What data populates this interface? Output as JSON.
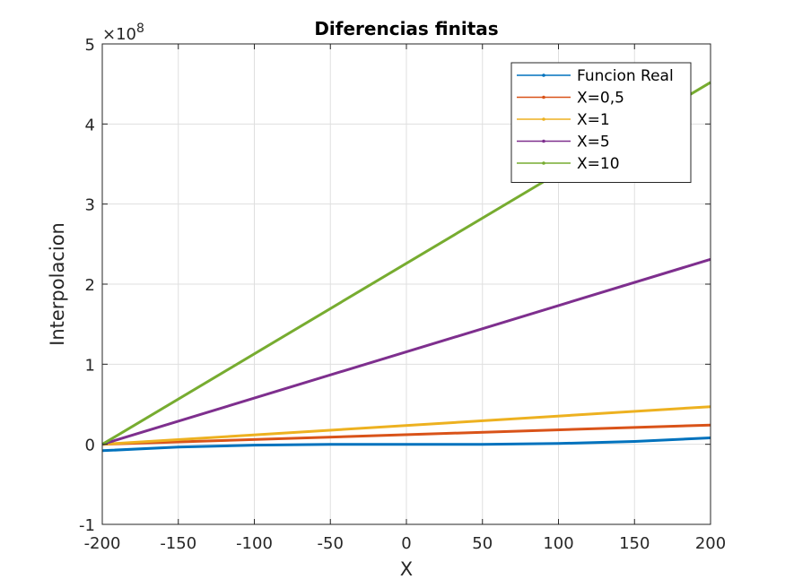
{
  "chart_data": {
    "type": "line",
    "title": "Diferencias finitas",
    "xlabel": "X",
    "ylabel": "Interpolacion",
    "y_exponent_label": "×10",
    "y_exponent": "8",
    "y_multiplier": 100000000,
    "xlim": [
      -200,
      200
    ],
    "ylim": [
      -1,
      5
    ],
    "x_ticks": [
      -200,
      -150,
      -100,
      -50,
      0,
      50,
      100,
      150,
      200
    ],
    "x_tick_labels": [
      "-200",
      "-150",
      "-100",
      "-50",
      "0",
      "50",
      "100",
      "150",
      "200"
    ],
    "y_ticks": [
      -1,
      0,
      1,
      2,
      3,
      4,
      5
    ],
    "y_tick_labels": [
      "-1",
      "0",
      "1",
      "2",
      "3",
      "4",
      "5"
    ],
    "grid": true,
    "legend_position": "top-right",
    "series": [
      {
        "name": "Funcion Real",
        "color": "#0072BD",
        "x": [
          -200,
          -150,
          -100,
          -50,
          0,
          50,
          100,
          150,
          200
        ],
        "y": [
          -0.08,
          -0.035,
          -0.01,
          0.0,
          0.0,
          0.0,
          0.01,
          0.035,
          0.08
        ]
      },
      {
        "name": "X=0,5",
        "color": "#D95319",
        "x": [
          -200,
          200
        ],
        "y": [
          0.0,
          0.24
        ]
      },
      {
        "name": "X=1",
        "color": "#EDB120",
        "x": [
          -200,
          200
        ],
        "y": [
          0.0,
          0.47
        ]
      },
      {
        "name": "X=5",
        "color": "#7E2F8E",
        "x": [
          -200,
          200
        ],
        "y": [
          0.0,
          2.31
        ]
      },
      {
        "name": "X=10",
        "color": "#77AC30",
        "x": [
          -200,
          200
        ],
        "y": [
          0.0,
          4.52
        ]
      }
    ]
  }
}
